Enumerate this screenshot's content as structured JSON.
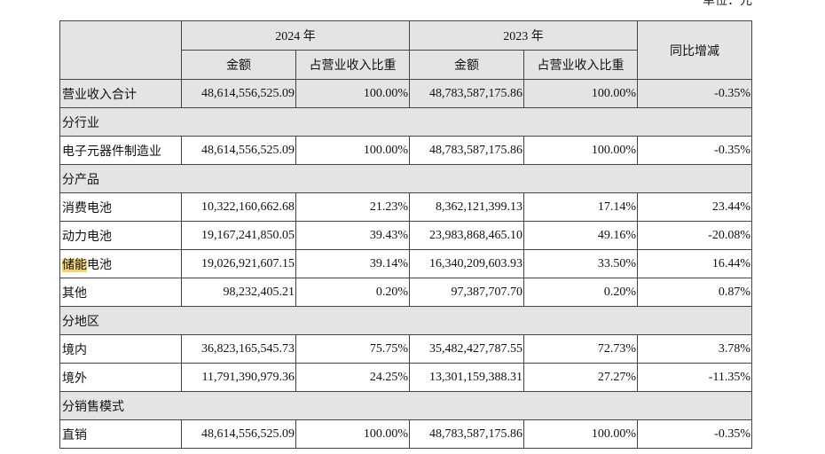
{
  "unit_label": "单位：元",
  "header": {
    "year_current": "2024 年",
    "year_previous": "2023 年",
    "yoy_change": "同比增减",
    "amount": "金额",
    "share": "占营业收入比重"
  },
  "total": {
    "label": "营业收入合计",
    "amt_2024": "48,614,556,525.09",
    "pct_2024": "100.00%",
    "amt_2023": "48,783,587,175.86",
    "pct_2023": "100.00%",
    "yoy": "-0.35%"
  },
  "sections": {
    "industry": "分行业",
    "product": "分产品",
    "region": "分地区",
    "sales_mode": "分销售模式"
  },
  "industry_rows": [
    {
      "label": "电子元器件制造业",
      "amt_2024": "48,614,556,525.09",
      "pct_2024": "100.00%",
      "amt_2023": "48,783,587,175.86",
      "pct_2023": "100.00%",
      "yoy": "-0.35%"
    }
  ],
  "product_rows": [
    {
      "label": "消费电池",
      "amt_2024": "10,322,160,662.68",
      "pct_2024": "21.23%",
      "amt_2023": "8,362,121,399.13",
      "pct_2023": "17.14%",
      "yoy": "23.44%"
    },
    {
      "label": "动力电池",
      "amt_2024": "19,167,241,850.05",
      "pct_2024": "39.43%",
      "amt_2023": "23,983,868,465.10",
      "pct_2023": "49.16%",
      "yoy": "-20.08%"
    },
    {
      "label_highlight": "储能",
      "label_rest": "电池",
      "amt_2024": "19,026,921,607.15",
      "pct_2024": "39.14%",
      "amt_2023": "16,340,209,603.93",
      "pct_2023": "33.50%",
      "yoy": "16.44%"
    },
    {
      "label": "其他",
      "amt_2024": "98,232,405.21",
      "pct_2024": "0.20%",
      "amt_2023": "97,387,707.70",
      "pct_2023": "0.20%",
      "yoy": "0.87%"
    }
  ],
  "region_rows": [
    {
      "label": "境内",
      "amt_2024": "36,823,165,545.73",
      "pct_2024": "75.75%",
      "amt_2023": "35,482,427,787.55",
      "pct_2023": "72.73%",
      "yoy": "3.78%"
    },
    {
      "label": "境外",
      "amt_2024": "11,791,390,979.36",
      "pct_2024": "24.25%",
      "amt_2023": "13,301,159,388.31",
      "pct_2023": "27.27%",
      "yoy": "-11.35%"
    }
  ],
  "sales_rows": [
    {
      "label": "直销",
      "amt_2024": "48,614,556,525.09",
      "pct_2024": "100.00%",
      "amt_2023": "48,783,587,175.86",
      "pct_2023": "100.00%",
      "yoy": "-0.35%"
    }
  ],
  "colors": {
    "header_bg": "#e4e4e4",
    "highlight": "#f5d56b",
    "border": "#444444"
  }
}
